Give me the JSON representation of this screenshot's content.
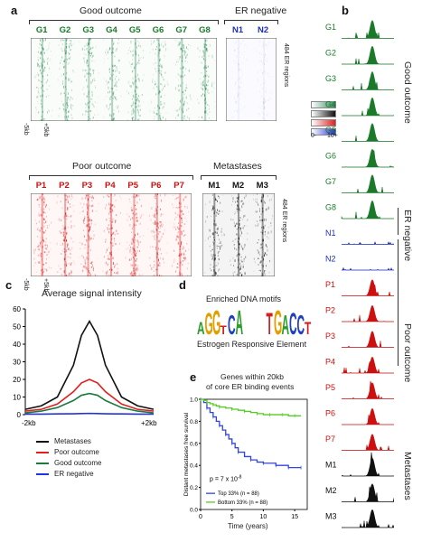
{
  "panel_a": {
    "label": "a",
    "good_title": "Good outcome",
    "er_neg_title": "ER negative",
    "poor_title": "Poor outcome",
    "met_title": "Metastases",
    "good_lanes": [
      "G1",
      "G2",
      "G3",
      "G4",
      "G5",
      "G6",
      "G7",
      "G8"
    ],
    "neg_lanes": [
      "N1",
      "N2"
    ],
    "poor_lanes": [
      "P1",
      "P2",
      "P3",
      "P4",
      "P5",
      "P6",
      "P7"
    ],
    "met_lanes": [
      "M1",
      "M2",
      "M3"
    ],
    "rows_label": "484 ER regions",
    "left_tick": "-5kb",
    "right_tick": "+5kb",
    "legend_min": "0-",
    "legend_max": "10+",
    "colors": {
      "good": "#2e8b57",
      "neg": "#3344cc",
      "poor": "#e02020",
      "met": "#111111"
    }
  },
  "panel_b": {
    "label": "b",
    "tracks": [
      "G1",
      "G2",
      "G3",
      "G4",
      "G5",
      "G6",
      "G7",
      "G8",
      "N1",
      "N2",
      "P1",
      "P2",
      "P3",
      "P4",
      "P5",
      "P6",
      "P7",
      "M1",
      "M2",
      "M3"
    ],
    "groups": [
      "Good outcome",
      "ER negative",
      "Poor outcome",
      "Metastases"
    ]
  },
  "panel_c": {
    "label": "c",
    "chart_data": {
      "type": "line",
      "title": "Average signal intensity",
      "x_tick_labels": [
        "-2kb",
        "+2kb"
      ],
      "y_ticks": [
        0,
        10,
        20,
        30,
        40,
        50,
        60
      ],
      "ylim": [
        0,
        60
      ],
      "x": [
        -2,
        -1.5,
        -1,
        -0.5,
        -0.25,
        0,
        0.25,
        0.5,
        1,
        1.5,
        2
      ],
      "series": [
        {
          "name": "Metastases",
          "color": "#111111",
          "values": [
            3,
            5,
            10,
            28,
            45,
            53,
            45,
            28,
            10,
            5,
            3
          ]
        },
        {
          "name": "Poor outcome",
          "color": "#e02020",
          "values": [
            2,
            3,
            6,
            13,
            18,
            20,
            18,
            13,
            6,
            3,
            2
          ]
        },
        {
          "name": "Good outcome",
          "color": "#1a7a40",
          "values": [
            1,
            2,
            4,
            8,
            11,
            12,
            11,
            8,
            4,
            2,
            1
          ]
        },
        {
          "name": "ER negative",
          "color": "#2233dd",
          "values": [
            0.3,
            0.3,
            0.4,
            0.5,
            0.6,
            0.7,
            0.6,
            0.5,
            0.4,
            0.3,
            0.3
          ]
        }
      ]
    }
  },
  "panel_d": {
    "label": "d",
    "title": "Enriched DNA motifs",
    "caption": "Estrogen Responsive Element"
  },
  "panel_e": {
    "label": "e",
    "chart_data": {
      "type": "line",
      "title_line1": "Genes within 20kb",
      "title_line2": "of core ER binding events",
      "ylabel": "Distant metastases free survival",
      "xlabel": "Time (years)",
      "x_ticks": [
        0,
        5,
        10,
        15
      ],
      "y_ticks": [
        "0.0",
        "0.2",
        "0.4",
        "0.6",
        "0.8",
        "1.0"
      ],
      "xlim": [
        0,
        17
      ],
      "ylim": [
        0,
        1
      ],
      "pvalue": "p = 7 x 10",
      "pvalue_exp": "-8",
      "series": [
        {
          "name": "Top 33% (n = 88)",
          "color": "#3344dd",
          "x": [
            0,
            0.5,
            1,
            1.5,
            2,
            2.5,
            3,
            3.5,
            4,
            4.5,
            5,
            5.5,
            6,
            7,
            8,
            9,
            10,
            11,
            12,
            13,
            14,
            15,
            16
          ],
          "values": [
            1.0,
            0.97,
            0.92,
            0.88,
            0.84,
            0.8,
            0.76,
            0.72,
            0.68,
            0.64,
            0.6,
            0.56,
            0.52,
            0.48,
            0.45,
            0.43,
            0.42,
            0.42,
            0.4,
            0.4,
            0.38,
            0.38,
            0.38
          ]
        },
        {
          "name": "Bottom 33% (n = 88)",
          "color": "#55cc22",
          "x": [
            0,
            0.5,
            1,
            1.5,
            2,
            2.5,
            3,
            4,
            5,
            6,
            7,
            8,
            9,
            10,
            11,
            12,
            13,
            14,
            15,
            16
          ],
          "values": [
            1.0,
            0.99,
            0.97,
            0.96,
            0.95,
            0.94,
            0.93,
            0.92,
            0.91,
            0.9,
            0.89,
            0.88,
            0.87,
            0.86,
            0.86,
            0.86,
            0.86,
            0.85,
            0.85,
            0.85
          ]
        }
      ]
    }
  }
}
